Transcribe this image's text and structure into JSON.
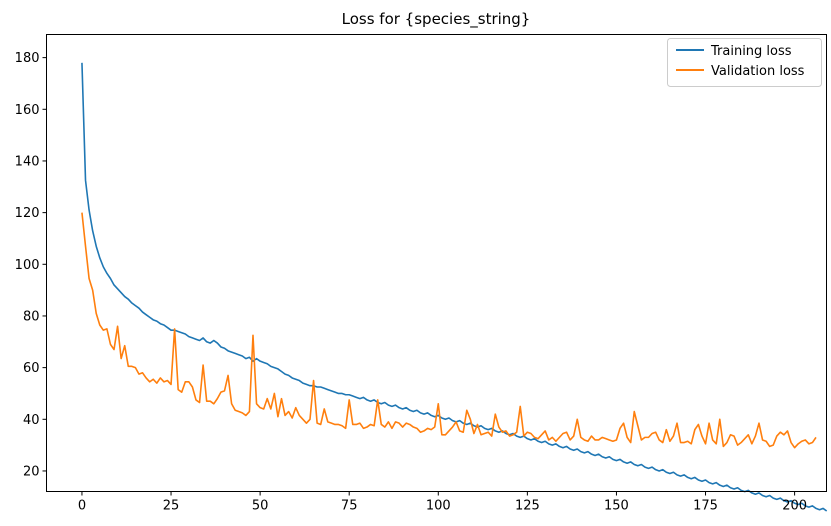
{
  "chart_data": {
    "type": "line",
    "title": "Loss for {species_string}",
    "xlabel": "",
    "ylabel": "",
    "xlim": [
      -9.95,
      208.95
    ],
    "ylim": [
      12.05,
      188.95
    ],
    "xticks": [
      0,
      25,
      50,
      75,
      100,
      125,
      150,
      175,
      200
    ],
    "yticks": [
      20,
      40,
      60,
      80,
      100,
      120,
      140,
      160,
      180
    ],
    "grid": false,
    "legend_position": "top-right",
    "series": [
      {
        "name": "Training loss",
        "color": "#1f77b4",
        "x_start": 0,
        "values": [
          178.0,
          132.5,
          121.0,
          113.0,
          107.0,
          102.5,
          99.0,
          96.5,
          94.5,
          92.0,
          90.5,
          89.0,
          87.5,
          86.5,
          85.0,
          84.0,
          83.0,
          81.5,
          80.5,
          79.5,
          78.5,
          78.0,
          77.0,
          76.5,
          75.5,
          74.5,
          74.5,
          74.0,
          73.5,
          73.0,
          72.0,
          71.5,
          71.0,
          70.5,
          71.5,
          70.0,
          69.5,
          70.5,
          69.5,
          68.0,
          67.5,
          66.5,
          66.0,
          65.5,
          65.0,
          64.5,
          63.5,
          64.0,
          62.5,
          63.5,
          62.5,
          62.0,
          61.5,
          60.5,
          60.0,
          59.5,
          58.5,
          57.5,
          57.0,
          56.0,
          55.5,
          55.0,
          54.0,
          53.5,
          53.0,
          53.0,
          52.5,
          52.5,
          52.0,
          51.5,
          51.0,
          50.5,
          50.0,
          50.0,
          49.5,
          49.5,
          49.0,
          48.5,
          48.0,
          48.5,
          47.5,
          47.0,
          47.5,
          46.5,
          46.0,
          46.5,
          45.5,
          45.0,
          45.5,
          44.5,
          44.0,
          44.5,
          43.5,
          43.0,
          43.5,
          42.5,
          42.0,
          42.5,
          41.5,
          41.0,
          41.5,
          40.5,
          40.0,
          40.5,
          39.5,
          39.0,
          39.5,
          38.5,
          38.0,
          38.5,
          37.5,
          37.0,
          37.5,
          36.5,
          36.0,
          36.5,
          35.5,
          35.0,
          35.5,
          34.5,
          34.0,
          34.5,
          33.5,
          33.0,
          33.5,
          32.5,
          32.0,
          32.5,
          31.5,
          31.0,
          31.5,
          30.5,
          30.0,
          30.5,
          29.5,
          29.0,
          29.5,
          28.5,
          28.0,
          28.5,
          27.5,
          27.0,
          27.5,
          26.5,
          26.0,
          26.5,
          25.5,
          25.0,
          25.5,
          24.5,
          24.0,
          24.5,
          23.5,
          23.0,
          23.5,
          22.5,
          22.0,
          22.5,
          21.5,
          21.0,
          21.5,
          20.5,
          20.0,
          20.5,
          19.5,
          19.0,
          19.5,
          18.5,
          18.0,
          18.5,
          17.5,
          17.0,
          17.5,
          16.5,
          16.0,
          16.5,
          15.5,
          15.0,
          15.5,
          14.5,
          14.0,
          14.5,
          13.5,
          13.0,
          13.5,
          12.5,
          12.0,
          12.5,
          11.5,
          11.0,
          11.5,
          10.5,
          10.0,
          10.5,
          9.5,
          9.0,
          9.5,
          8.5,
          8.0,
          8.5,
          7.5,
          7.0,
          7.5,
          6.5,
          6.0,
          6.5,
          5.5,
          5.0,
          5.5,
          4.5
        ]
      },
      {
        "name": "Validation loss",
        "color": "#ff7f0e",
        "x_start": 0,
        "values": [
          120.0,
          107.0,
          94.5,
          90.0,
          81.0,
          76.5,
          74.5,
          75.0,
          69.0,
          67.0,
          76.0,
          63.5,
          68.5,
          60.5,
          60.5,
          60.0,
          57.5,
          58.0,
          56.0,
          54.5,
          55.5,
          54.0,
          56.0,
          54.5,
          55.0,
          53.5,
          75.0,
          51.5,
          50.5,
          54.5,
          54.5,
          52.5,
          47.5,
          46.5,
          61.0,
          47.0,
          47.0,
          46.0,
          48.0,
          50.5,
          51.0,
          57.0,
          46.0,
          43.5,
          43.0,
          42.5,
          41.5,
          43.0,
          72.5,
          46.0,
          44.5,
          44.0,
          48.0,
          44.0,
          50.0,
          41.0,
          48.0,
          41.5,
          43.0,
          40.5,
          44.5,
          41.5,
          40.0,
          38.5,
          40.0,
          55.0,
          38.5,
          38.0,
          44.0,
          39.0,
          38.5,
          38.0,
          38.0,
          37.5,
          36.5,
          47.5,
          38.0,
          38.0,
          38.5,
          36.5,
          37.0,
          38.0,
          37.5,
          47.5,
          38.0,
          37.0,
          39.0,
          36.5,
          39.0,
          38.5,
          37.0,
          38.5,
          38.0,
          37.0,
          36.5,
          35.0,
          35.5,
          36.5,
          36.0,
          37.0,
          46.0,
          34.0,
          34.0,
          35.5,
          37.0,
          39.0,
          35.5,
          35.0,
          43.5,
          40.0,
          34.5,
          38.0,
          34.0,
          34.5,
          35.0,
          33.5,
          42.0,
          37.0,
          35.0,
          35.5,
          33.5,
          34.0,
          35.0,
          45.0,
          33.5,
          35.0,
          34.5,
          33.0,
          32.5,
          34.0,
          35.5,
          32.0,
          33.0,
          31.5,
          33.0,
          34.5,
          35.0,
          32.0,
          33.5,
          40.0,
          33.0,
          32.0,
          31.5,
          33.5,
          32.0,
          32.0,
          33.0,
          32.5,
          32.0,
          31.5,
          32.0,
          36.5,
          38.5,
          33.0,
          31.0,
          43.0,
          37.5,
          32.0,
          33.0,
          33.0,
          34.5,
          35.0,
          32.0,
          31.0,
          36.0,
          31.5,
          33.5,
          38.5,
          31.0,
          31.0,
          31.5,
          30.5,
          36.0,
          38.0,
          33.5,
          30.5,
          38.5,
          32.0,
          30.5,
          40.0,
          29.5,
          31.0,
          34.0,
          33.5,
          30.0,
          31.0,
          32.5,
          34.0,
          30.5,
          33.5,
          38.5,
          32.0,
          31.5,
          29.5,
          30.0,
          33.5,
          35.0,
          34.0,
          35.5,
          31.0,
          29.0,
          30.5,
          31.5,
          32.0,
          30.5,
          31.0,
          33.0
        ]
      }
    ]
  }
}
